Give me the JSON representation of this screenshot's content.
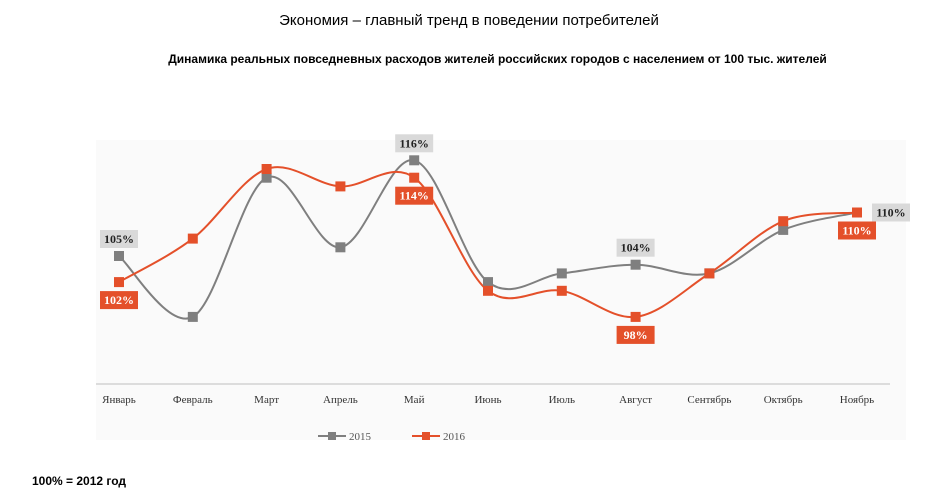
{
  "title": "Экономия – главный тренд в поведении потребителей",
  "subtitle": "Динамика реальных повседневных расходов жителей российских городов с населением от 100 тыс. жителей",
  "footnote": "100% = 2012 год",
  "colors": {
    "s2015": "#7f7f7f",
    "s2016": "#e4502a",
    "label_bg_2015": "#d9d9d9"
  },
  "chart_data": {
    "type": "line",
    "categories": [
      "Январь",
      "Февраль",
      "Март",
      "Апрель",
      "Май",
      "Июнь",
      "Июль",
      "Август",
      "Сентябрь",
      "Октябрь",
      "Ноябрь"
    ],
    "ylim": [
      92,
      120
    ],
    "grid": false,
    "legend": "bottom",
    "series": [
      {
        "name": "2015",
        "values": [
          105,
          98,
          114,
          106,
          116,
          102,
          103,
          104,
          103,
          108,
          110
        ]
      },
      {
        "name": "2016",
        "values": [
          102,
          107,
          115,
          113,
          114,
          101,
          101,
          98,
          103,
          109,
          110
        ]
      }
    ],
    "data_labels": [
      {
        "series": 0,
        "index": 0,
        "text": "105%"
      },
      {
        "series": 0,
        "index": 4,
        "text": "116%"
      },
      {
        "series": 0,
        "index": 7,
        "text": "104%"
      },
      {
        "series": 0,
        "index": 10,
        "text": "110%"
      },
      {
        "series": 1,
        "index": 0,
        "text": "102%"
      },
      {
        "series": 1,
        "index": 4,
        "text": "114%"
      },
      {
        "series": 1,
        "index": 7,
        "text": "98%"
      },
      {
        "series": 1,
        "index": 10,
        "text": "110%"
      }
    ]
  }
}
